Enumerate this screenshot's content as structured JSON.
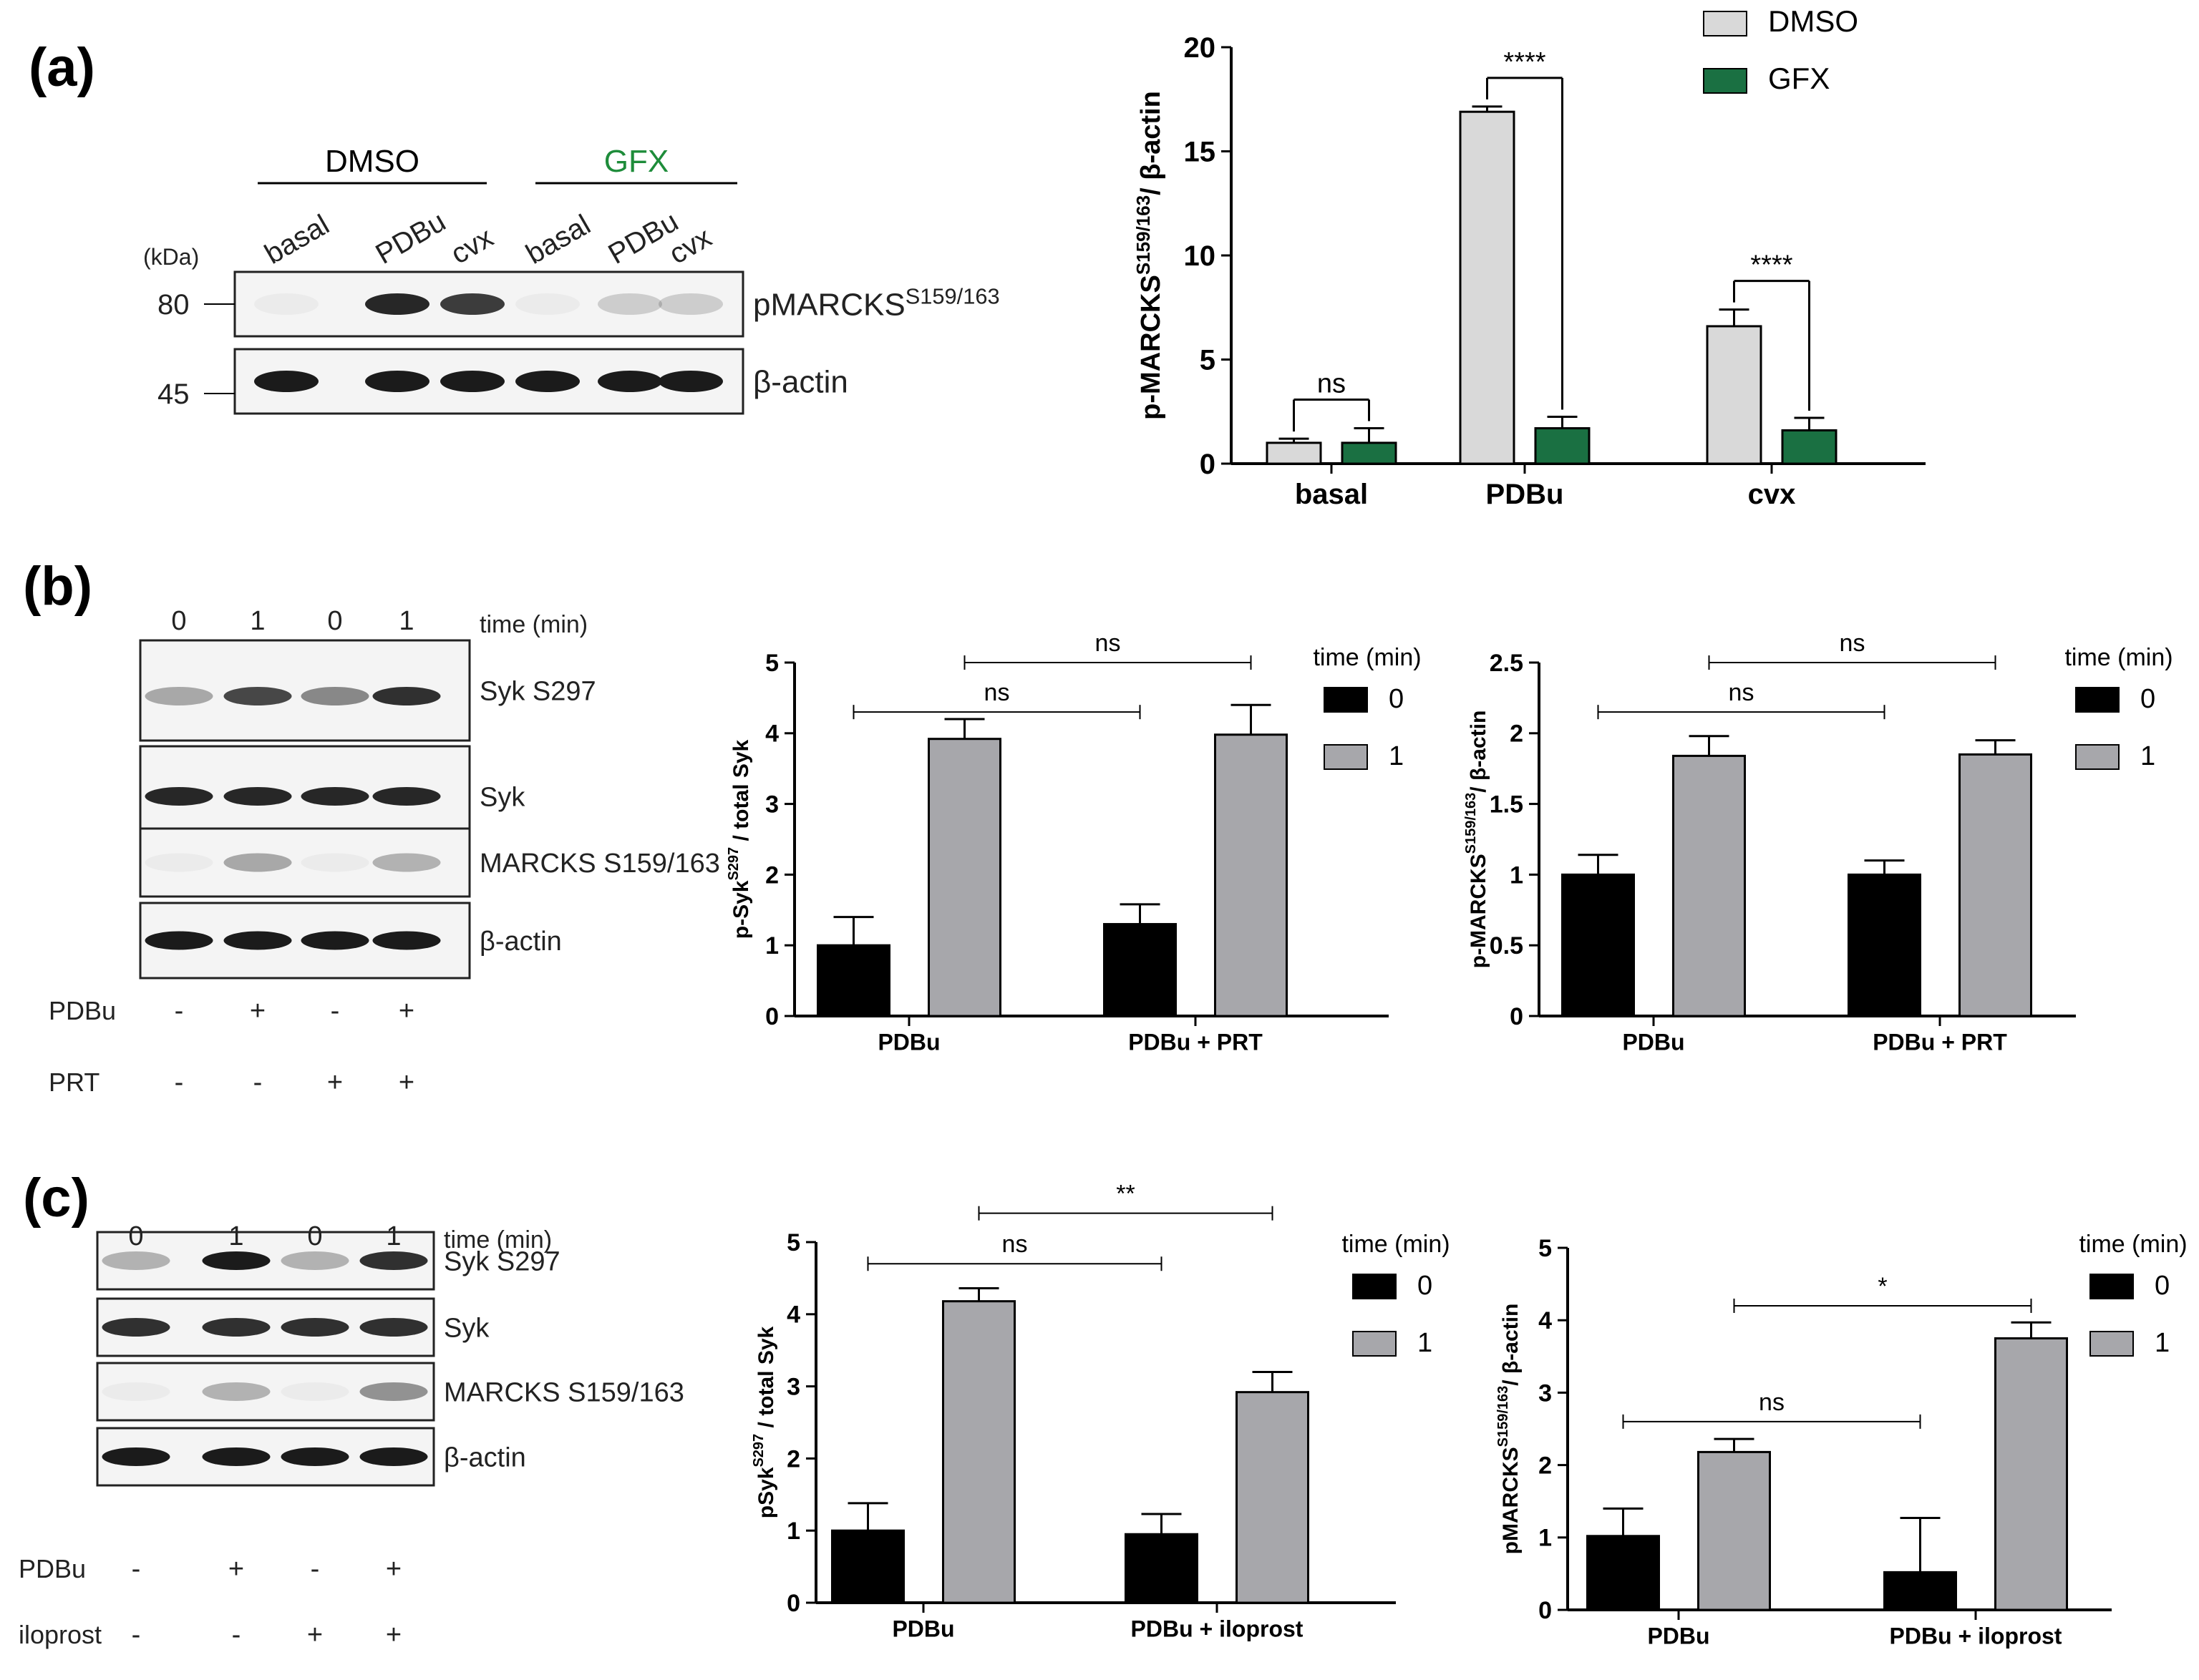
{
  "panel_labels": [
    "(a)",
    "(b)",
    "(c)"
  ],
  "colors": {
    "dmso": "#d9d9d9",
    "gfx": "#1a7042",
    "gfx_text": "#1e8c3a",
    "time0": "#000000",
    "time1": "#a7a7ab",
    "axis": "#000000",
    "blot_band": "#1b1b1b"
  },
  "blots": [
    {
      "panel": "a",
      "group_labels": [
        {
          "text": "DMSO",
          "color": "#000000"
        },
        {
          "text": "GFX",
          "color": "#1e8c3a"
        }
      ],
      "lane_labels": [
        "basal",
        "PDBu",
        "cvx",
        "basal",
        "PDBu",
        "cvx"
      ],
      "kda_title": "(kDa)",
      "markers": [
        "80",
        "45"
      ],
      "rows": [
        {
          "label": "pMARCKS",
          "label_sup": "S159/163",
          "intensities": [
            0.04,
            0.95,
            0.85,
            0.04,
            0.18,
            0.18
          ]
        },
        {
          "label": "β-actin",
          "label_sup": "",
          "intensities": [
            1,
            1,
            1,
            1,
            1,
            1
          ]
        }
      ]
    },
    {
      "panel": "b",
      "time_labels": [
        "0",
        "1",
        "0",
        "1"
      ],
      "time_title": "time (min)",
      "rows": [
        {
          "label": "Syk S297",
          "intensities": [
            0.35,
            0.8,
            0.5,
            0.9
          ]
        },
        {
          "label": "Syk",
          "intensities": [
            0.95,
            0.95,
            0.95,
            0.95
          ]
        },
        {
          "label": "MARCKS S159/163",
          "intensities": [
            0.04,
            0.35,
            0.04,
            0.3
          ]
        },
        {
          "label": "β-actin",
          "intensities": [
            1,
            1,
            1,
            1
          ]
        }
      ],
      "treatments": [
        {
          "label": "PDBu",
          "values": [
            "-",
            "+",
            "-",
            "+"
          ]
        },
        {
          "label": "PRT",
          "values": [
            "-",
            "-",
            "+",
            "+"
          ]
        }
      ]
    },
    {
      "panel": "c",
      "time_labels": [
        "0",
        "1",
        "0",
        "1"
      ],
      "time_title": "time (min)",
      "rows": [
        {
          "label": "Syk S297",
          "intensities": [
            0.3,
            1,
            0.3,
            0.9
          ]
        },
        {
          "label": "Syk",
          "intensities": [
            0.9,
            0.9,
            0.9,
            0.9
          ]
        },
        {
          "label": "MARCKS S159/163",
          "intensities": [
            0.04,
            0.3,
            0.04,
            0.45
          ]
        },
        {
          "label": "β-actin",
          "intensities": [
            1,
            1,
            1,
            1
          ]
        }
      ],
      "treatments": [
        {
          "label": "PDBu",
          "values": [
            "-",
            "+",
            "-",
            "+"
          ]
        },
        {
          "label": "iloprost",
          "values": [
            "-",
            "-",
            "+",
            "+"
          ]
        }
      ]
    }
  ],
  "chart_data": [
    {
      "id": "a-chart",
      "type": "bar",
      "categories": [
        "basal",
        "PDBu",
        "cvx"
      ],
      "series": [
        {
          "name": "DMSO",
          "values": [
            1.0,
            16.9,
            6.6
          ],
          "errors": [
            0.2,
            0.25,
            0.8
          ],
          "color": "#d9d9d9"
        },
        {
          "name": "GFX",
          "values": [
            1.0,
            1.7,
            1.6
          ],
          "errors": [
            0.7,
            0.55,
            0.6
          ],
          "color": "#1a7042"
        }
      ],
      "ylim": [
        0,
        20
      ],
      "yticks": [
        0,
        5,
        10,
        15,
        20
      ],
      "ylabel": "p-MARCKS",
      "ylabel_sup": "S159/163",
      "ylabel_suffix": "/ β-actin",
      "legend_title": "",
      "legend_position": "top-right",
      "significance": [
        {
          "label": "ns",
          "category": 0
        },
        {
          "label": "****",
          "category": 1
        },
        {
          "label": "****",
          "category": 2
        }
      ]
    },
    {
      "id": "b-chart1",
      "type": "bar",
      "categories": [
        "PDBu",
        "PDBu + PRT"
      ],
      "series": [
        {
          "name": "0",
          "values": [
            1.0,
            1.3
          ],
          "errors": [
            0.4,
            0.28
          ],
          "color": "#000000"
        },
        {
          "name": "1",
          "values": [
            3.92,
            3.98
          ],
          "errors": [
            0.28,
            0.42
          ],
          "color": "#a7a7ab"
        }
      ],
      "ylim": [
        0,
        5
      ],
      "yticks": [
        0,
        1,
        2,
        3,
        4,
        5
      ],
      "ylabel": "p-Syk",
      "ylabel_sup": "S297",
      "ylabel_suffix": " / total Syk",
      "legend_title": "time (min)",
      "legend_position": "top-right",
      "brackets": [
        {
          "label": "ns",
          "from": [
            0,
            0
          ],
          "to": [
            1,
            0
          ],
          "level": 4.3
        },
        {
          "label": "ns",
          "from": [
            0,
            1
          ],
          "to": [
            1,
            1
          ],
          "level": 5.0
        }
      ]
    },
    {
      "id": "b-chart2",
      "type": "bar",
      "categories": [
        "PDBu",
        "PDBu + PRT"
      ],
      "series": [
        {
          "name": "0",
          "values": [
            1.0,
            1.0
          ],
          "errors": [
            0.14,
            0.1
          ],
          "color": "#000000"
        },
        {
          "name": "1",
          "values": [
            1.84,
            1.85
          ],
          "errors": [
            0.14,
            0.1
          ],
          "color": "#a7a7ab"
        }
      ],
      "ylim": [
        0,
        2.5
      ],
      "yticks": [
        0.0,
        0.5,
        1.0,
        1.5,
        2.0,
        2.5
      ],
      "ylabel": "p-MARCKS",
      "ylabel_sup": "S159/163",
      "ylabel_suffix": "/ β-actin",
      "legend_title": "time (min)",
      "legend_position": "top-right",
      "brackets": [
        {
          "label": "ns",
          "from": [
            0,
            0
          ],
          "to": [
            1,
            0
          ],
          "level": 2.15
        },
        {
          "label": "ns",
          "from": [
            0,
            1
          ],
          "to": [
            1,
            1
          ],
          "level": 2.5
        }
      ]
    },
    {
      "id": "c-chart1",
      "type": "bar",
      "categories": [
        "PDBu",
        "PDBu + iloprost"
      ],
      "series": [
        {
          "name": "0",
          "values": [
            1.0,
            0.95
          ],
          "errors": [
            0.38,
            0.28
          ],
          "color": "#000000"
        },
        {
          "name": "1",
          "values": [
            4.18,
            2.92
          ],
          "errors": [
            0.18,
            0.28
          ],
          "color": "#a7a7ab"
        }
      ],
      "ylim": [
        0,
        5
      ],
      "yticks": [
        0,
        1,
        2,
        3,
        4,
        5
      ],
      "ylabel": "pSyk",
      "ylabel_sup": "S297",
      "ylabel_suffix": " / total Syk",
      "legend_title": "time (min)",
      "legend_position": "top-right",
      "brackets": [
        {
          "label": "ns",
          "from": [
            0,
            0
          ],
          "to": [
            1,
            0
          ],
          "level": 4.7
        },
        {
          "label": "**",
          "from": [
            0,
            1
          ],
          "to": [
            1,
            1
          ],
          "level": 5.4
        }
      ]
    },
    {
      "id": "c-chart2",
      "type": "bar",
      "categories": [
        "PDBu",
        "PDBu + iloprost"
      ],
      "series": [
        {
          "name": "0",
          "values": [
            1.02,
            0.52
          ],
          "errors": [
            0.38,
            0.75
          ],
          "color": "#000000"
        },
        {
          "name": "1",
          "values": [
            2.18,
            3.75
          ],
          "errors": [
            0.18,
            0.22
          ],
          "color": "#a7a7ab"
        }
      ],
      "ylim": [
        0,
        5
      ],
      "yticks": [
        0,
        1,
        2,
        3,
        4,
        5
      ],
      "ylabel": "pMARCKS",
      "ylabel_sup": "S159/163",
      "ylabel_suffix": "/ β-actin",
      "legend_title": "time (min)",
      "legend_position": "top-right",
      "brackets": [
        {
          "label": "ns",
          "from": [
            0,
            0
          ],
          "to": [
            1,
            0
          ],
          "level": 2.6
        },
        {
          "label": "*",
          "from": [
            0,
            1
          ],
          "to": [
            1,
            1
          ],
          "level": 4.2
        }
      ]
    }
  ]
}
